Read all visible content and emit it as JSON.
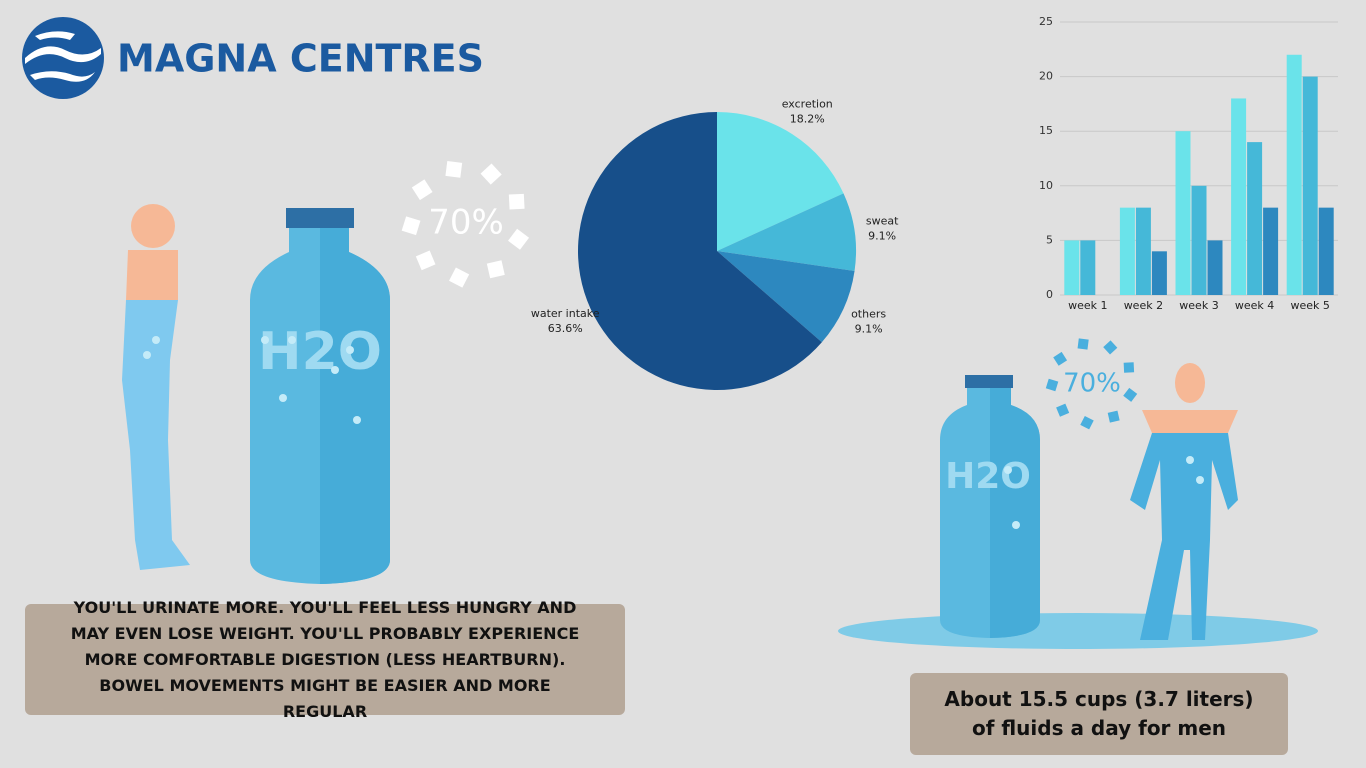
{
  "logo": {
    "text": "MAGNA CENTRES"
  },
  "badges": [
    "70%",
    "70%"
  ],
  "bottle_labels": [
    "H2O",
    "H2O"
  ],
  "left_box": {
    "text": "YOU'LL URINATE MORE. YOU'LL FEEL LESS HUNGRY AND MAY EVEN LOSE WEIGHT. YOU'LL PROBABLY EXPERIENCE MORE COMFORTABLE DIGESTION (LESS HEARTBURN). BOWEL MOVEMENTS MIGHT BE EASIER AND MORE REGULAR"
  },
  "right_box": {
    "text": "About 15.5 cups (3.7 liters) of fluids a day for men"
  },
  "chart_data": [
    {
      "type": "pie",
      "categories": [
        "excretion",
        "sweat",
        "others",
        "water intake"
      ],
      "values": [
        18.2,
        9.1,
        9.1,
        63.6
      ],
      "value_labels": [
        "18.2%",
        "9.1%",
        "9.1%",
        "63.6%"
      ],
      "colors": [
        "#6ae3ea",
        "#45b8d8",
        "#2d88bf",
        "#174f8a"
      ]
    },
    {
      "type": "bar",
      "categories": [
        "week 1",
        "week 2",
        "week 3",
        "week 4",
        "week 5"
      ],
      "series": [
        {
          "color": "#6ae3ea",
          "values": [
            5,
            8,
            15,
            18,
            22
          ]
        },
        {
          "color": "#45b8d8",
          "values": [
            5,
            8,
            10,
            14,
            20
          ]
        },
        {
          "color": "#2d88bf",
          "values": [
            null,
            4,
            5,
            8,
            8
          ]
        }
      ],
      "ylim": [
        0,
        25
      ],
      "yticks": [
        0,
        5,
        10,
        15,
        20,
        25
      ],
      "grid": true
    }
  ]
}
